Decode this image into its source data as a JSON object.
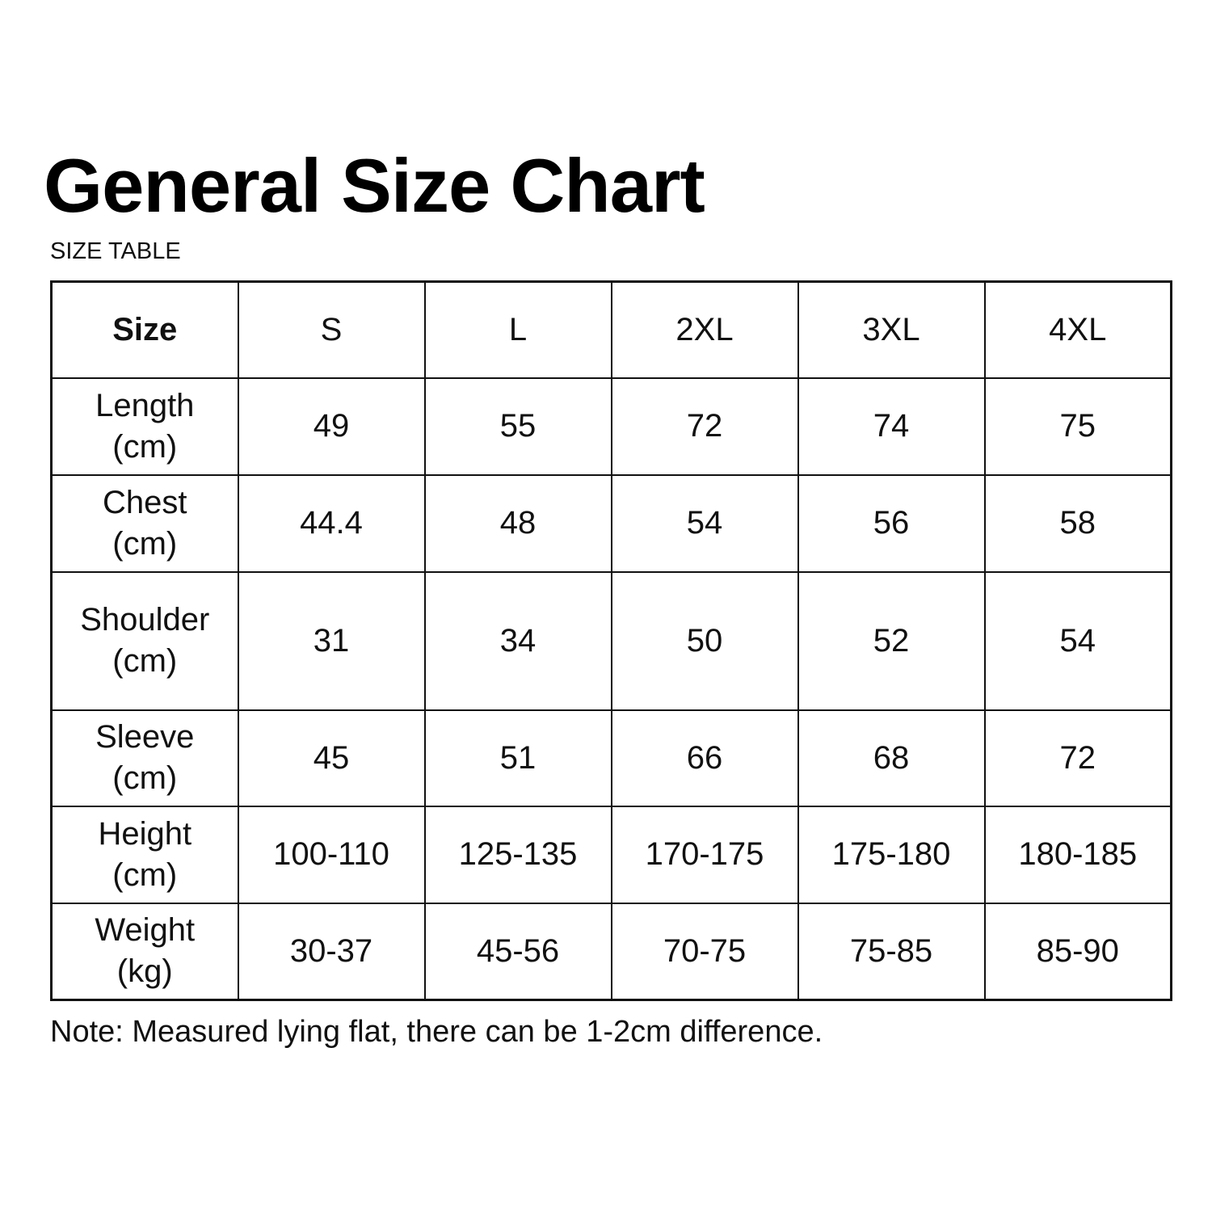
{
  "title": "General Size Chart",
  "subtitle": "SIZE TABLE",
  "table": {
    "header": {
      "label": "Size",
      "sizes": [
        "S",
        "L",
        "2XL",
        "3XL",
        "4XL"
      ]
    },
    "rows": [
      {
        "label": [
          "Length",
          "(cm)"
        ],
        "values": [
          "49",
          "55",
          "72",
          "74",
          "75"
        ]
      },
      {
        "label": [
          "Chest",
          "(cm)"
        ],
        "values": [
          "44.4",
          "48",
          "54",
          "56",
          "58"
        ]
      },
      {
        "label": [
          "Shoulder",
          "(cm)"
        ],
        "values": [
          "31",
          "34",
          "50",
          "52",
          "54"
        ]
      },
      {
        "label": [
          "Sleeve",
          "(cm)"
        ],
        "values": [
          "45",
          "51",
          "66",
          "68",
          "72"
        ]
      },
      {
        "label": [
          "Height",
          "(cm)"
        ],
        "values": [
          "100-110",
          "125-135",
          "170-175",
          "175-180",
          "180-185"
        ]
      },
      {
        "label": [
          "Weight",
          "(kg)"
        ],
        "values": [
          "30-37",
          "45-56",
          "70-75",
          "75-85",
          "85-90"
        ]
      }
    ]
  },
  "note": "Note: Measured lying flat, there can be 1-2cm difference."
}
